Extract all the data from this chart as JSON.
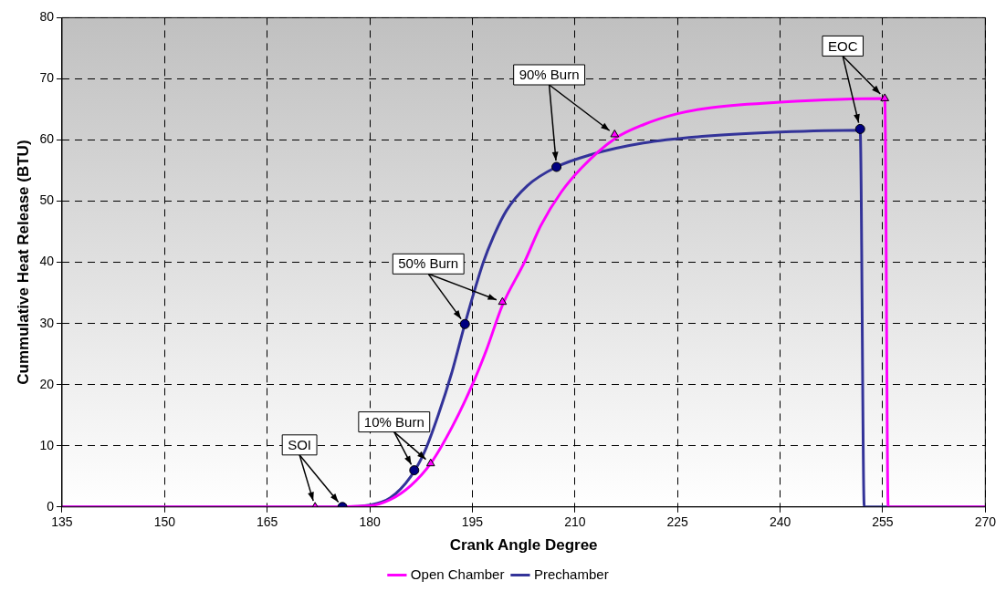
{
  "chart_data": {
    "type": "line",
    "xlabel": "Crank Angle Degree",
    "ylabel": "Cummulative Heat Release (BTU)",
    "xlim": [
      135,
      270
    ],
    "xticks": [
      135,
      150,
      165,
      180,
      195,
      210,
      225,
      240,
      255,
      270
    ],
    "ylim": [
      0,
      80
    ],
    "yticks": [
      0,
      10,
      20,
      30,
      40,
      50,
      60,
      70,
      80
    ],
    "grid": true,
    "legend": "bottom",
    "series": [
      {
        "name": "Open Chamber",
        "color": "#ff00ff",
        "marker": "none",
        "x": [
          135,
          172,
          180,
          183,
          186,
          188.9,
          192,
          195,
          197,
          199.4,
          202.6,
          205,
          208,
          211,
          215.8,
          220,
          225,
          230,
          240,
          255.3,
          255.8,
          270
        ],
        "values": [
          0,
          0,
          0.2,
          1.2,
          3.5,
          7.1,
          13,
          20,
          25.5,
          33,
          40,
          46,
          51.5,
          55.5,
          60.2,
          62.5,
          64.3,
          65.3,
          66.2,
          66.8,
          0,
          0
        ]
      },
      {
        "name": "Prechamber",
        "color": "#333399",
        "marker": "none",
        "x": [
          135,
          176,
          180,
          183,
          186,
          188,
          190,
          192,
          193.9,
          196.6,
          198,
          200,
          203,
          207.3,
          212,
          220,
          230,
          240,
          251.7,
          252.3,
          270
        ],
        "values": [
          0,
          0,
          0.3,
          1.5,
          5,
          9,
          15,
          22,
          29.9,
          40,
          44,
          48.5,
          52.5,
          55.6,
          57.5,
          59.5,
          60.7,
          61.3,
          61.6,
          0,
          0
        ]
      },
      {
        "type": "scatter",
        "color": "#ff00ff",
        "marker": "triangle",
        "x": [
          172,
          188.9,
          199.4,
          215.8,
          255.3
        ],
        "values": [
          0,
          7.1,
          33.5,
          60.9,
          66.8
        ]
      },
      {
        "type": "scatter",
        "color": "#000080",
        "marker": "circle",
        "x": [
          176,
          186.5,
          193.9,
          207.3,
          251.7
        ],
        "values": [
          0,
          6,
          29.9,
          55.6,
          61.8
        ]
      }
    ],
    "annotations": [
      {
        "text": "SOI",
        "x": 176,
        "y": 0
      },
      {
        "text": "10% Burn",
        "x": 186.5,
        "y": 6
      },
      {
        "text": "50% Burn",
        "x": 193.9,
        "y": 29.9
      },
      {
        "text": "90% Burn",
        "x": 207.3,
        "y": 55.6
      },
      {
        "text": "EOC",
        "x": 251.7,
        "y": 61.8
      }
    ]
  }
}
